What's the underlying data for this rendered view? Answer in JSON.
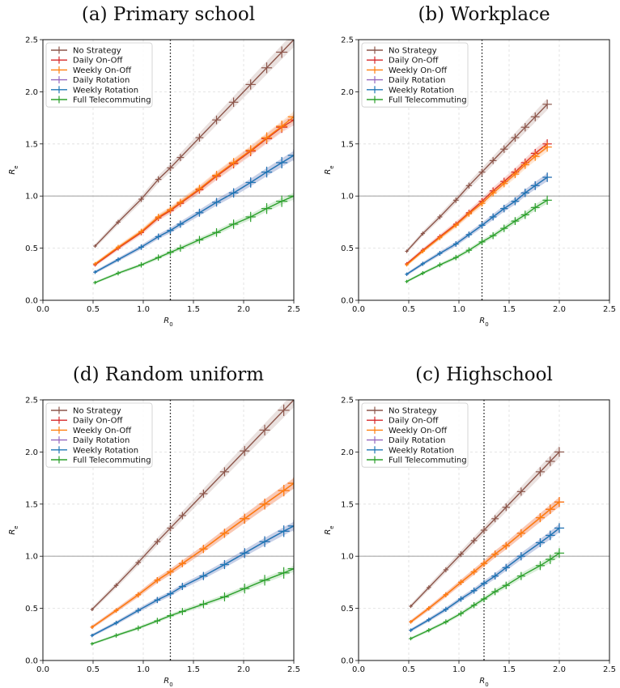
{
  "colors": {
    "no_strategy": "#8c564b",
    "daily_onoff": "#d62728",
    "weekly_onoff": "#ff7f0e",
    "daily_rotation": "#9467bd",
    "weekly_rotation": "#1f77b4",
    "full_telecommuting": "#2ca02c",
    "threshold_line": "#a8a8a8",
    "grid": "#dddddd"
  },
  "chart_data": [
    {
      "type": "line",
      "title": "(a) Primary school",
      "xlabel": "R_0",
      "ylabel": "R_e",
      "xlim": [
        0,
        2.5
      ],
      "ylim": [
        0,
        2.5
      ],
      "xticks": [
        "0.0",
        "0.5",
        "1.0",
        "1.5",
        "2.0",
        "2.5"
      ],
      "yticks": [
        "0.0",
        "0.5",
        "1.0",
        "1.5",
        "2.0",
        "2.5"
      ],
      "grid": true,
      "legend": "top-left",
      "hline": 1.0,
      "vline": 1.27,
      "series": [
        {
          "name": "No Strategy",
          "color_key": "no_strategy",
          "x": [
            0.52,
            0.75,
            0.98,
            1.15,
            1.27,
            1.37,
            1.56,
            1.73,
            1.9,
            2.07,
            2.23,
            2.38,
            2.5
          ],
          "y": [
            0.52,
            0.75,
            0.97,
            1.16,
            1.27,
            1.37,
            1.56,
            1.73,
            1.9,
            2.07,
            2.23,
            2.38,
            2.5
          ]
        },
        {
          "name": "Daily On-Off",
          "color_key": "daily_onoff",
          "x": [
            0.52,
            0.75,
            0.98,
            1.15,
            1.27,
            1.37,
            1.56,
            1.73,
            1.9,
            2.07,
            2.23,
            2.38,
            2.5
          ],
          "y": [
            0.34,
            0.5,
            0.65,
            0.79,
            0.86,
            0.93,
            1.06,
            1.19,
            1.31,
            1.43,
            1.55,
            1.66,
            1.73
          ]
        },
        {
          "name": "Weekly On-Off",
          "color_key": "weekly_onoff",
          "x": [
            0.52,
            0.75,
            0.98,
            1.15,
            1.27,
            1.37,
            1.56,
            1.73,
            1.9,
            2.07,
            2.23,
            2.38,
            2.5
          ],
          "y": [
            0.35,
            0.51,
            0.66,
            0.8,
            0.87,
            0.94,
            1.07,
            1.2,
            1.32,
            1.44,
            1.56,
            1.67,
            1.76
          ]
        },
        {
          "name": "Daily Rotation",
          "color_key": "daily_rotation",
          "x": [
            0.52,
            0.75,
            0.98,
            1.15,
            1.27,
            1.37,
            1.56,
            1.73,
            1.9,
            2.07,
            2.23,
            2.38,
            2.5
          ],
          "y": [
            0.27,
            0.39,
            0.51,
            0.61,
            0.67,
            0.73,
            0.84,
            0.94,
            1.03,
            1.13,
            1.23,
            1.32,
            1.39
          ]
        },
        {
          "name": "Weekly Rotation",
          "color_key": "weekly_rotation",
          "x": [
            0.52,
            0.75,
            0.98,
            1.15,
            1.27,
            1.37,
            1.56,
            1.73,
            1.9,
            2.07,
            2.23,
            2.38,
            2.5
          ],
          "y": [
            0.27,
            0.39,
            0.51,
            0.61,
            0.67,
            0.73,
            0.84,
            0.94,
            1.03,
            1.13,
            1.23,
            1.32,
            1.39
          ]
        },
        {
          "name": "Full Telecommuting",
          "color_key": "full_telecommuting",
          "x": [
            0.52,
            0.75,
            0.98,
            1.15,
            1.27,
            1.37,
            1.56,
            1.73,
            1.9,
            2.07,
            2.23,
            2.38,
            2.5
          ],
          "y": [
            0.17,
            0.26,
            0.34,
            0.41,
            0.46,
            0.5,
            0.58,
            0.65,
            0.73,
            0.8,
            0.88,
            0.95,
            1.0
          ]
        }
      ]
    },
    {
      "type": "line",
      "title": "(b) Workplace",
      "xlabel": "R_0",
      "ylabel": "R_e",
      "xlim": [
        0,
        2.5
      ],
      "ylim": [
        0,
        2.5
      ],
      "xticks": [
        "0.0",
        "0.5",
        "1.0",
        "1.5",
        "2.0",
        "2.5"
      ],
      "yticks": [
        "0.0",
        "0.5",
        "1.0",
        "1.5",
        "2.0",
        "2.5"
      ],
      "grid": true,
      "legend": "top-left",
      "hline": 1.0,
      "vline": 1.23,
      "series": [
        {
          "name": "No Strategy",
          "color_key": "no_strategy",
          "x": [
            0.48,
            0.64,
            0.81,
            0.97,
            1.1,
            1.23,
            1.34,
            1.45,
            1.56,
            1.66,
            1.76,
            1.88
          ],
          "y": [
            0.47,
            0.64,
            0.8,
            0.96,
            1.1,
            1.23,
            1.34,
            1.45,
            1.56,
            1.66,
            1.76,
            1.88
          ]
        },
        {
          "name": "Daily On-Off",
          "color_key": "daily_onoff",
          "x": [
            0.48,
            0.64,
            0.81,
            0.97,
            1.1,
            1.23,
            1.34,
            1.45,
            1.56,
            1.66,
            1.76,
            1.88
          ],
          "y": [
            0.35,
            0.48,
            0.61,
            0.73,
            0.84,
            0.95,
            1.05,
            1.14,
            1.23,
            1.32,
            1.41,
            1.5
          ]
        },
        {
          "name": "Weekly On-Off",
          "color_key": "weekly_onoff",
          "x": [
            0.48,
            0.64,
            0.81,
            0.97,
            1.1,
            1.23,
            1.34,
            1.45,
            1.56,
            1.66,
            1.76,
            1.88
          ],
          "y": [
            0.34,
            0.47,
            0.6,
            0.72,
            0.83,
            0.93,
            1.03,
            1.12,
            1.21,
            1.3,
            1.38,
            1.47
          ]
        },
        {
          "name": "Daily Rotation",
          "color_key": "daily_rotation",
          "x": [
            0.48,
            0.64,
            0.81,
            0.97,
            1.1,
            1.23,
            1.34,
            1.45,
            1.56,
            1.66,
            1.76,
            1.88
          ],
          "y": [
            0.25,
            0.35,
            0.45,
            0.54,
            0.63,
            0.72,
            0.8,
            0.88,
            0.95,
            1.03,
            1.1,
            1.18
          ]
        },
        {
          "name": "Weekly Rotation",
          "color_key": "weekly_rotation",
          "x": [
            0.48,
            0.64,
            0.81,
            0.97,
            1.1,
            1.23,
            1.34,
            1.45,
            1.56,
            1.66,
            1.76,
            1.88
          ],
          "y": [
            0.25,
            0.35,
            0.45,
            0.54,
            0.63,
            0.72,
            0.8,
            0.88,
            0.95,
            1.03,
            1.1,
            1.18
          ]
        },
        {
          "name": "Full Telecommuting",
          "color_key": "full_telecommuting",
          "x": [
            0.48,
            0.64,
            0.81,
            0.97,
            1.1,
            1.23,
            1.34,
            1.45,
            1.56,
            1.66,
            1.76,
            1.88
          ],
          "y": [
            0.18,
            0.26,
            0.34,
            0.41,
            0.48,
            0.56,
            0.62,
            0.69,
            0.76,
            0.82,
            0.89,
            0.96
          ]
        }
      ]
    },
    {
      "type": "line",
      "title": "(d) Random uniform",
      "xlabel": "R_0",
      "ylabel": "R_e",
      "xlim": [
        0,
        2.5
      ],
      "ylim": [
        0,
        2.5
      ],
      "xticks": [
        "0.0",
        "0.5",
        "1.0",
        "1.5",
        "2.0",
        "2.5"
      ],
      "yticks": [
        "0.0",
        "0.5",
        "1.0",
        "1.5",
        "2.0",
        "2.5"
      ],
      "grid": true,
      "legend": "top-left",
      "hline": 1.0,
      "vline": 1.27,
      "series": [
        {
          "name": "No Strategy",
          "color_key": "no_strategy",
          "x": [
            0.49,
            0.73,
            0.95,
            1.14,
            1.27,
            1.39,
            1.6,
            1.81,
            2.01,
            2.21,
            2.4,
            2.5
          ],
          "y": [
            0.49,
            0.72,
            0.94,
            1.14,
            1.27,
            1.39,
            1.6,
            1.81,
            2.01,
            2.21,
            2.4,
            2.5
          ]
        },
        {
          "name": "Daily On-Off",
          "color_key": "daily_onoff",
          "x": [
            0.49,
            0.73,
            0.95,
            1.14,
            1.27,
            1.39,
            1.6,
            1.81,
            2.01,
            2.21,
            2.4,
            2.5
          ],
          "y": [
            0.32,
            0.48,
            0.63,
            0.77,
            0.85,
            0.93,
            1.07,
            1.22,
            1.36,
            1.5,
            1.63,
            1.7
          ]
        },
        {
          "name": "Weekly On-Off",
          "color_key": "weekly_onoff",
          "x": [
            0.49,
            0.73,
            0.95,
            1.14,
            1.27,
            1.39,
            1.6,
            1.81,
            2.01,
            2.21,
            2.4,
            2.5
          ],
          "y": [
            0.32,
            0.48,
            0.63,
            0.77,
            0.85,
            0.93,
            1.07,
            1.22,
            1.36,
            1.5,
            1.63,
            1.7
          ]
        },
        {
          "name": "Daily Rotation",
          "color_key": "daily_rotation",
          "x": [
            0.49,
            0.73,
            0.95,
            1.14,
            1.27,
            1.39,
            1.6,
            1.81,
            2.01,
            2.21,
            2.4,
            2.5
          ],
          "y": [
            0.24,
            0.36,
            0.48,
            0.58,
            0.64,
            0.71,
            0.81,
            0.92,
            1.03,
            1.14,
            1.24,
            1.29
          ]
        },
        {
          "name": "Weekly Rotation",
          "color_key": "weekly_rotation",
          "x": [
            0.49,
            0.73,
            0.95,
            1.14,
            1.27,
            1.39,
            1.6,
            1.81,
            2.01,
            2.21,
            2.4,
            2.5
          ],
          "y": [
            0.24,
            0.36,
            0.48,
            0.58,
            0.64,
            0.71,
            0.81,
            0.92,
            1.03,
            1.14,
            1.24,
            1.29
          ]
        },
        {
          "name": "Full Telecommuting",
          "color_key": "full_telecommuting",
          "x": [
            0.49,
            0.73,
            0.95,
            1.14,
            1.27,
            1.39,
            1.6,
            1.81,
            2.01,
            2.21,
            2.4,
            2.5
          ],
          "y": [
            0.16,
            0.24,
            0.31,
            0.38,
            0.43,
            0.47,
            0.54,
            0.61,
            0.69,
            0.77,
            0.84,
            0.88
          ]
        }
      ]
    },
    {
      "type": "line",
      "title": "(c) Highschool",
      "xlabel": "R_0",
      "ylabel": "R_e",
      "xlim": [
        0,
        2.5
      ],
      "ylim": [
        0,
        2.5
      ],
      "xticks": [
        "0.0",
        "0.5",
        "1.0",
        "1.5",
        "2.0",
        "2.5"
      ],
      "yticks": [
        "0.0",
        "0.5",
        "1.0",
        "1.5",
        "2.0",
        "2.5"
      ],
      "grid": true,
      "legend": "top-left",
      "hline": 1.0,
      "vline": 1.25,
      "series": [
        {
          "name": "No Strategy",
          "color_key": "no_strategy",
          "x": [
            0.52,
            0.7,
            0.87,
            1.02,
            1.15,
            1.25,
            1.36,
            1.47,
            1.62,
            1.81,
            1.91,
            2.0
          ],
          "y": [
            0.52,
            0.7,
            0.87,
            1.02,
            1.15,
            1.25,
            1.36,
            1.47,
            1.62,
            1.81,
            1.91,
            2.0
          ]
        },
        {
          "name": "Daily On-Off",
          "color_key": "daily_onoff",
          "x": [
            0.52,
            0.7,
            0.87,
            1.02,
            1.15,
            1.25,
            1.36,
            1.47,
            1.62,
            1.81,
            1.91,
            2.0
          ],
          "y": [
            0.37,
            0.5,
            0.63,
            0.75,
            0.85,
            0.93,
            1.02,
            1.1,
            1.22,
            1.37,
            1.45,
            1.52
          ]
        },
        {
          "name": "Weekly On-Off",
          "color_key": "weekly_onoff",
          "x": [
            0.52,
            0.7,
            0.87,
            1.02,
            1.15,
            1.25,
            1.36,
            1.47,
            1.62,
            1.81,
            1.91,
            2.0
          ],
          "y": [
            0.37,
            0.5,
            0.63,
            0.75,
            0.85,
            0.93,
            1.02,
            1.1,
            1.22,
            1.37,
            1.45,
            1.52
          ]
        },
        {
          "name": "Daily Rotation",
          "color_key": "daily_rotation",
          "x": [
            0.52,
            0.7,
            0.87,
            1.02,
            1.15,
            1.25,
            1.36,
            1.47,
            1.62,
            1.81,
            1.91,
            2.0
          ],
          "y": [
            0.29,
            0.39,
            0.49,
            0.59,
            0.67,
            0.74,
            0.81,
            0.89,
            1.0,
            1.13,
            1.2,
            1.27
          ]
        },
        {
          "name": "Weekly Rotation",
          "color_key": "weekly_rotation",
          "x": [
            0.52,
            0.7,
            0.87,
            1.02,
            1.15,
            1.25,
            1.36,
            1.47,
            1.62,
            1.81,
            1.91,
            2.0
          ],
          "y": [
            0.29,
            0.39,
            0.49,
            0.59,
            0.67,
            0.74,
            0.81,
            0.89,
            1.0,
            1.13,
            1.2,
            1.27
          ]
        },
        {
          "name": "Full Telecommuting",
          "color_key": "full_telecommuting",
          "x": [
            0.52,
            0.7,
            0.87,
            1.02,
            1.15,
            1.25,
            1.36,
            1.47,
            1.62,
            1.81,
            1.91,
            2.0
          ],
          "y": [
            0.21,
            0.29,
            0.37,
            0.45,
            0.53,
            0.59,
            0.66,
            0.72,
            0.81,
            0.91,
            0.97,
            1.03
          ]
        }
      ]
    }
  ]
}
